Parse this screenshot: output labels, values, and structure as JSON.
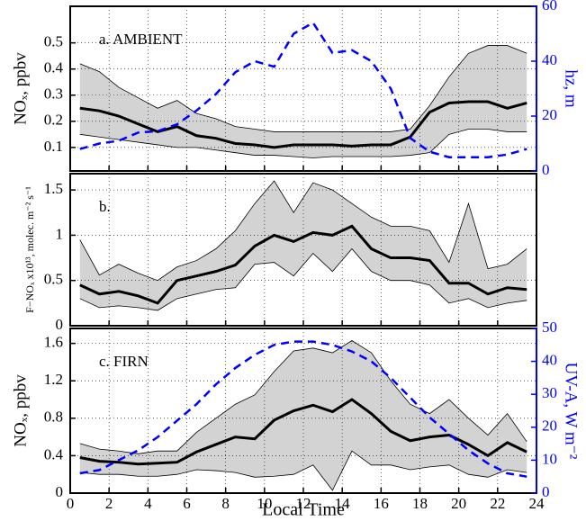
{
  "chart_data": [
    {
      "type": "line",
      "annotation": "a. AMBIENT",
      "ylabel": "NOₓ, ppbv",
      "y2label": "hz, m",
      "x": [
        0.5,
        1.5,
        2.5,
        3.5,
        4.5,
        5.5,
        6.5,
        7.5,
        8.5,
        9.5,
        10.5,
        11.5,
        12.5,
        13.5,
        14.5,
        15.5,
        16.5,
        17.5,
        18.5,
        19.5,
        20.5,
        21.5,
        22.5,
        23.5
      ],
      "band": {
        "color": "#d3d3d3",
        "upper": [
          0.42,
          0.39,
          0.33,
          0.29,
          0.25,
          0.28,
          0.23,
          0.21,
          0.18,
          0.17,
          0.16,
          0.16,
          0.16,
          0.16,
          0.16,
          0.16,
          0.16,
          0.17,
          0.26,
          0.37,
          0.46,
          0.49,
          0.49,
          0.46
        ],
        "lower": [
          0.15,
          0.14,
          0.13,
          0.12,
          0.11,
          0.1,
          0.1,
          0.09,
          0.08,
          0.07,
          0.07,
          0.065,
          0.06,
          0.065,
          0.065,
          0.065,
          0.065,
          0.07,
          0.08,
          0.15,
          0.17,
          0.17,
          0.16,
          0.16
        ]
      },
      "series": [
        {
          "color": "#000000",
          "linestyle": "solid",
          "values": [
            0.25,
            0.24,
            0.22,
            0.19,
            0.16,
            0.18,
            0.145,
            0.135,
            0.115,
            0.11,
            0.1,
            0.11,
            0.11,
            0.11,
            0.105,
            0.11,
            0.11,
            0.14,
            0.235,
            0.27,
            0.275,
            0.275,
            0.25,
            0.27
          ]
        },
        {
          "color": "#0000ff",
          "linestyle": "dashed",
          "axis": "y2",
          "values": [
            8,
            10,
            11,
            14,
            14.5,
            17,
            22,
            28,
            36,
            40,
            38,
            50,
            54,
            43,
            44,
            40,
            30,
            12,
            7,
            5,
            5,
            5,
            6,
            8
          ]
        }
      ],
      "xlim": [
        0,
        24
      ],
      "xticks": [
        0,
        2,
        4,
        6,
        8,
        10,
        12,
        14,
        16,
        18,
        20,
        22,
        24
      ],
      "ylim": [
        0.01,
        0.64
      ],
      "yticks": [
        0.1,
        0.2,
        0.3,
        0.4,
        0.5
      ],
      "y2lim": [
        0,
        60
      ],
      "y2ticks": [
        0,
        20,
        40,
        60
      ],
      "y2color": "#0000ff",
      "grid": true
    },
    {
      "type": "line",
      "annotation": "b.",
      "ylabel": "F−NOₓ x10¹³, molec. m⁻² s⁻¹",
      "x": [
        0.5,
        1.5,
        2.5,
        3.5,
        4.5,
        5.5,
        6.5,
        7.5,
        8.5,
        9.5,
        10.5,
        11.5,
        12.5,
        13.5,
        14.5,
        15.5,
        16.5,
        17.5,
        18.5,
        19.5,
        20.5,
        21.5,
        22.5,
        23.5
      ],
      "band": {
        "color": "#d3d3d3",
        "upper": [
          0.95,
          0.56,
          0.68,
          0.58,
          0.5,
          0.65,
          0.72,
          0.85,
          1.05,
          1.35,
          1.6,
          1.25,
          1.58,
          1.5,
          1.35,
          1.2,
          1.1,
          1.1,
          1.05,
          0.7,
          1.35,
          0.63,
          0.68,
          0.85
        ],
        "lower": [
          0.3,
          0.2,
          0.22,
          0.2,
          0.17,
          0.3,
          0.35,
          0.4,
          0.42,
          0.68,
          0.7,
          0.55,
          0.8,
          0.6,
          0.85,
          0.6,
          0.5,
          0.5,
          0.45,
          0.25,
          0.3,
          0.2,
          0.25,
          0.28
        ]
      },
      "series": [
        {
          "color": "#000000",
          "linestyle": "solid",
          "values": [
            0.45,
            0.35,
            0.38,
            0.33,
            0.25,
            0.5,
            0.55,
            0.6,
            0.67,
            0.88,
            1.0,
            0.93,
            1.03,
            1.0,
            1.1,
            0.85,
            0.75,
            0.75,
            0.72,
            0.47,
            0.47,
            0.35,
            0.42,
            0.4
          ]
        }
      ],
      "xlim": [
        0,
        24
      ],
      "xticks": [
        0,
        2,
        4,
        6,
        8,
        10,
        12,
        14,
        16,
        18,
        20,
        22,
        24
      ],
      "ylim": [
        0,
        1.68
      ],
      "yticks": [
        0,
        0.5,
        1,
        1.5
      ],
      "grid": true
    },
    {
      "type": "line",
      "annotation": "c. FIRN",
      "ylabel": "NOₓ, ppbv",
      "y2label": "UV-A, W m⁻²",
      "xlabel": "Local Time",
      "x": [
        0.5,
        1.5,
        2.5,
        3.5,
        4.5,
        5.5,
        6.5,
        7.5,
        8.5,
        9.5,
        10.5,
        11.5,
        12.5,
        13.5,
        14.5,
        15.5,
        16.5,
        17.5,
        18.5,
        19.5,
        20.5,
        21.5,
        22.5,
        23.5
      ],
      "band": {
        "color": "#d3d3d3",
        "upper": [
          0.53,
          0.47,
          0.45,
          0.42,
          0.45,
          0.45,
          0.65,
          0.8,
          0.95,
          1.05,
          1.3,
          1.52,
          1.55,
          1.5,
          1.63,
          1.5,
          1.2,
          0.95,
          0.85,
          1.0,
          0.8,
          0.62,
          0.85,
          0.55
        ],
        "lower": [
          0.22,
          0.2,
          0.2,
          0.18,
          0.18,
          0.2,
          0.25,
          0.24,
          0.22,
          0.17,
          0.18,
          0.2,
          0.3,
          0.03,
          0.45,
          0.3,
          0.3,
          0.25,
          0.28,
          0.3,
          0.2,
          0.17,
          0.25,
          0.22
        ]
      },
      "series": [
        {
          "color": "#000000",
          "linestyle": "solid",
          "values": [
            0.38,
            0.34,
            0.33,
            0.31,
            0.32,
            0.33,
            0.44,
            0.52,
            0.6,
            0.58,
            0.78,
            0.88,
            0.94,
            0.87,
            1.0,
            0.85,
            0.66,
            0.56,
            0.6,
            0.62,
            0.52,
            0.4,
            0.54,
            0.44
          ]
        },
        {
          "color": "#0000ff",
          "linestyle": "dashed",
          "axis": "y2",
          "values": [
            6,
            7,
            10,
            13,
            17,
            22,
            27,
            33,
            38,
            42,
            45,
            46,
            46,
            45,
            43,
            40,
            35,
            29,
            23,
            18,
            13,
            9,
            6,
            5
          ]
        }
      ],
      "xlim": [
        0,
        24
      ],
      "xticks": [
        0,
        2,
        4,
        6,
        8,
        10,
        12,
        14,
        16,
        18,
        20,
        22,
        24
      ],
      "ylim": [
        0,
        1.76
      ],
      "yticks": [
        0,
        0.4,
        0.8,
        1.2,
        1.6
      ],
      "y2lim": [
        0,
        50
      ],
      "y2ticks": [
        0,
        10,
        20,
        30,
        40,
        50
      ],
      "y2color": "#0000ff",
      "grid": true
    }
  ]
}
